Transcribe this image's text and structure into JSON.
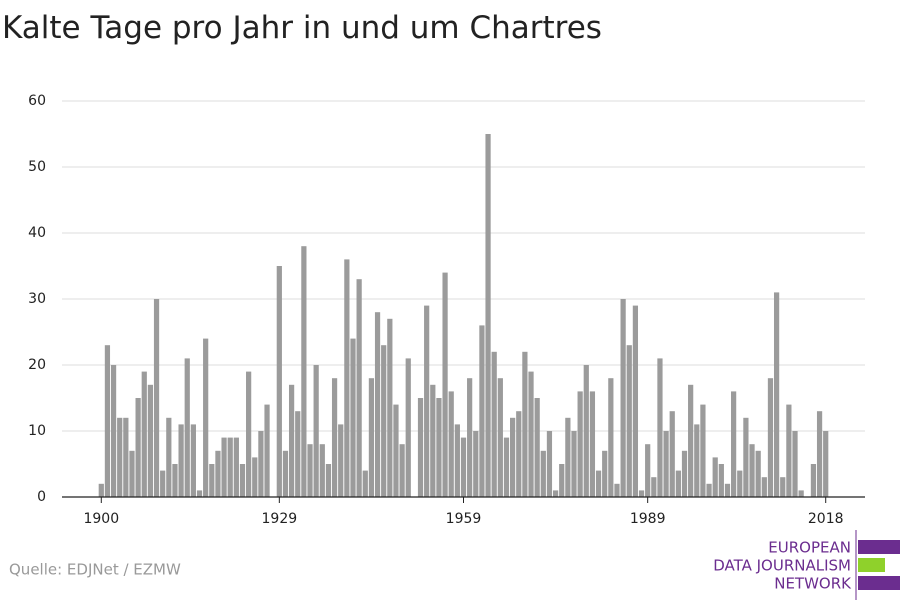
{
  "chart_data": {
    "type": "bar",
    "title": "Kalte Tage pro Jahr in und um Chartres",
    "source": "Quelle: EDJNet / EZMW",
    "logo": [
      "EUROPEAN",
      "DATA JOURNALISM",
      "NETWORK"
    ],
    "color": "#9b9b9b",
    "grid": true,
    "x": [
      1900,
      1901,
      1902,
      1903,
      1904,
      1905,
      1906,
      1907,
      1908,
      1909,
      1910,
      1911,
      1912,
      1913,
      1914,
      1915,
      1916,
      1917,
      1918,
      1919,
      1920,
      1921,
      1922,
      1923,
      1924,
      1925,
      1926,
      1927,
      1928,
      1929,
      1930,
      1931,
      1932,
      1933,
      1934,
      1935,
      1936,
      1937,
      1938,
      1939,
      1940,
      1941,
      1942,
      1943,
      1944,
      1945,
      1946,
      1947,
      1948,
      1949,
      1950,
      1951,
      1952,
      1953,
      1954,
      1955,
      1956,
      1957,
      1958,
      1959,
      1960,
      1961,
      1962,
      1963,
      1964,
      1965,
      1966,
      1967,
      1968,
      1969,
      1970,
      1971,
      1972,
      1973,
      1974,
      1975,
      1976,
      1977,
      1978,
      1979,
      1980,
      1981,
      1982,
      1983,
      1984,
      1985,
      1986,
      1987,
      1988,
      1989,
      1990,
      1991,
      1992,
      1993,
      1994,
      1995,
      1996,
      1997,
      1998,
      1999,
      2000,
      2001,
      2002,
      2003,
      2004,
      2005,
      2006,
      2007,
      2008,
      2009,
      2010,
      2011,
      2012,
      2013,
      2014,
      2015,
      2016,
      2017,
      2018
    ],
    "values": [
      2,
      23,
      20,
      12,
      12,
      7,
      15,
      19,
      17,
      30,
      4,
      12,
      5,
      11,
      21,
      11,
      1,
      24,
      5,
      7,
      9,
      9,
      9,
      5,
      19,
      6,
      10,
      14,
      0,
      35,
      7,
      17,
      13,
      38,
      8,
      20,
      8,
      5,
      18,
      11,
      36,
      24,
      33,
      4,
      18,
      28,
      23,
      27,
      14,
      8,
      21,
      0,
      15,
      29,
      17,
      15,
      34,
      16,
      11,
      9,
      18,
      10,
      26,
      55,
      22,
      18,
      9,
      12,
      13,
      22,
      19,
      15,
      7,
      10,
      1,
      5,
      12,
      10,
      16,
      20,
      16,
      4,
      7,
      18,
      2,
      30,
      23,
      29,
      1,
      8,
      3,
      21,
      10,
      13,
      4,
      7,
      17,
      11,
      14,
      2,
      6,
      5,
      2,
      16,
      4,
      12,
      8,
      7,
      3,
      18,
      31,
      3,
      14,
      10,
      1,
      0,
      5,
      13,
      10
    ],
    "xlim": [
      1893.6,
      2024.4
    ],
    "xticks": [
      1900,
      1929,
      1959,
      1989,
      2018
    ],
    "ylim": [
      0,
      60
    ],
    "yticks": [
      0,
      10,
      20,
      30,
      40,
      50,
      60
    ]
  }
}
